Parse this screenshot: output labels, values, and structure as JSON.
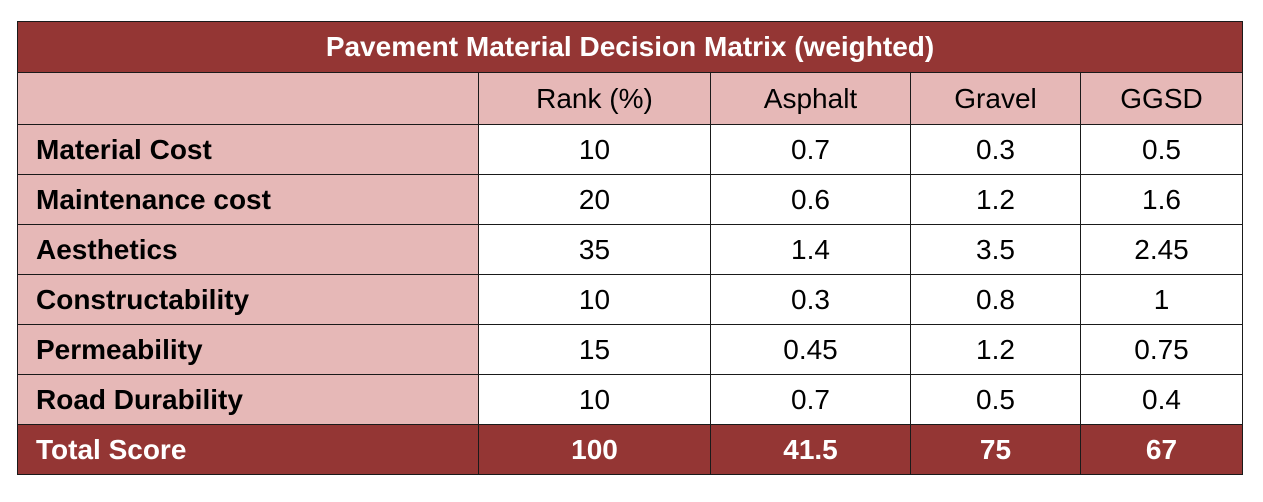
{
  "table": {
    "title": "Pavement Material Decision Matrix (weighted)",
    "corner_label": "",
    "columns": [
      "Rank (%)",
      "Asphalt",
      "Gravel",
      "GGSD"
    ],
    "rows": [
      {
        "criterion": "Material Cost",
        "values": [
          "10",
          "0.7",
          "0.3",
          "0.5"
        ]
      },
      {
        "criterion": "Maintenance cost",
        "values": [
          "20",
          "0.6",
          "1.2",
          "1.6"
        ]
      },
      {
        "criterion": "Aesthetics",
        "values": [
          "35",
          "1.4",
          "3.5",
          "2.45"
        ]
      },
      {
        "criterion": "Constructability",
        "values": [
          "10",
          "0.3",
          "0.8",
          "1"
        ]
      },
      {
        "criterion": "Permeability",
        "values": [
          "15",
          "0.45",
          "1.2",
          "0.75"
        ]
      },
      {
        "criterion": "Road Durability",
        "values": [
          "10",
          "0.7",
          "0.5",
          "0.4"
        ]
      }
    ],
    "total": {
      "label": "Total Score",
      "values": [
        "100",
        "41.5",
        "75",
        "67"
      ]
    }
  },
  "colors": {
    "header_dark": "#943634",
    "header_light": "#e6b8b7",
    "cell_background": "#ffffff",
    "border": "#1a1a1a"
  }
}
